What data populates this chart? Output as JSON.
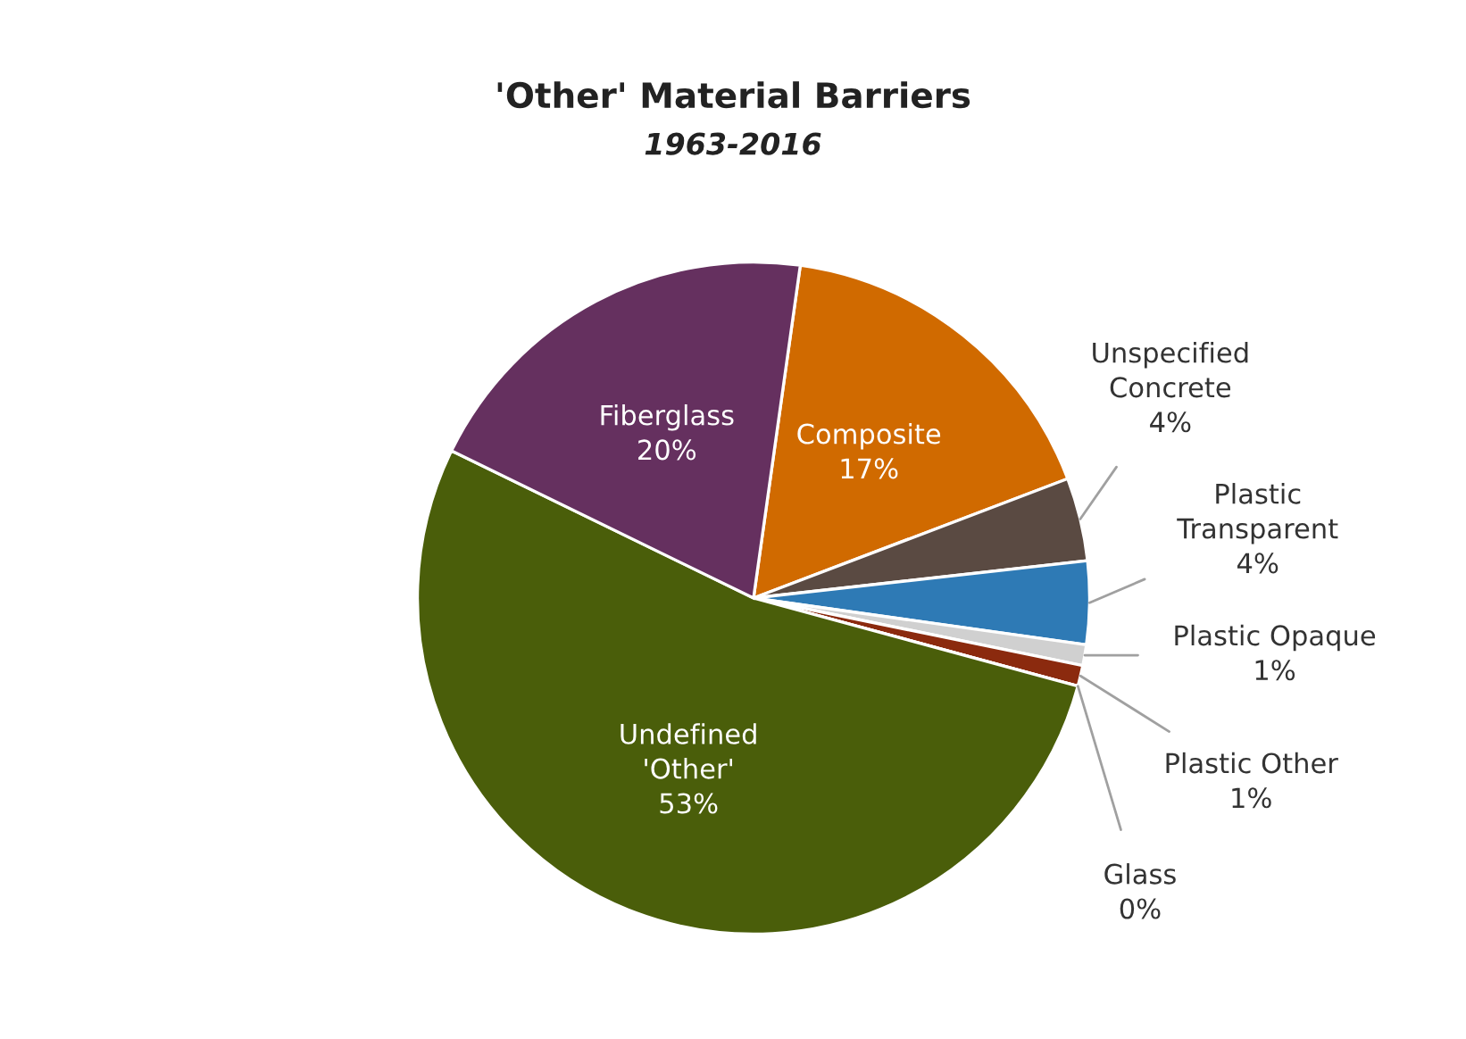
{
  "chart_data": {
    "type": "pie",
    "title": "'Other' Material Barriers",
    "subtitle": "1963-2016",
    "categories": [
      "Composite",
      "Unspecified\nConcrete",
      "Plastic\nTransparent",
      "Plastic Opaque",
      "Plastic Other",
      "Glass",
      "Undefined\n'Other'",
      "Fiberglass"
    ],
    "values": [
      17,
      4,
      4,
      1,
      1,
      0,
      53,
      20
    ],
    "value_labels": [
      "17%",
      "4%",
      "4%",
      "1%",
      "1%",
      "0%",
      "53%",
      "20%"
    ],
    "colors": [
      "#d06a00",
      "#5a4a42",
      "#2e7ab5",
      "#d0d0d0",
      "#8b2a0e",
      "#3a5fa0",
      "#4a5e0a",
      "#65305f"
    ],
    "legend": false
  }
}
